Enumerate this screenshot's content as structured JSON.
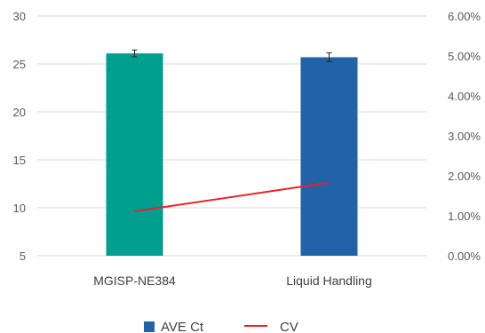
{
  "chart_data": {
    "type": "bar",
    "categories": [
      "MGISP-NE384",
      "Liquid Handling"
    ],
    "series": [
      {
        "name": "AVE Ct",
        "chart": "bar",
        "axis": "left",
        "values": [
          26.1,
          25.7
        ],
        "error": [
          0.35,
          0.45
        ],
        "colors": [
          "#009E8F",
          "#2262A6"
        ]
      },
      {
        "name": "CV",
        "chart": "line",
        "axis": "right",
        "values": [
          0.0111,
          0.0183
        ],
        "color": "#E8242B"
      }
    ],
    "y_left": {
      "min": 5,
      "max": 30,
      "ticks": [
        "5",
        "10",
        "15",
        "20",
        "25",
        "30"
      ]
    },
    "y_right": {
      "min": 0,
      "max": 0.06,
      "ticks": [
        "0.00%",
        "1.00%",
        "2.00%",
        "3.00%",
        "4.00%",
        "5.00%",
        "6.00%"
      ]
    },
    "grid": true,
    "legend_position": "bottom"
  }
}
